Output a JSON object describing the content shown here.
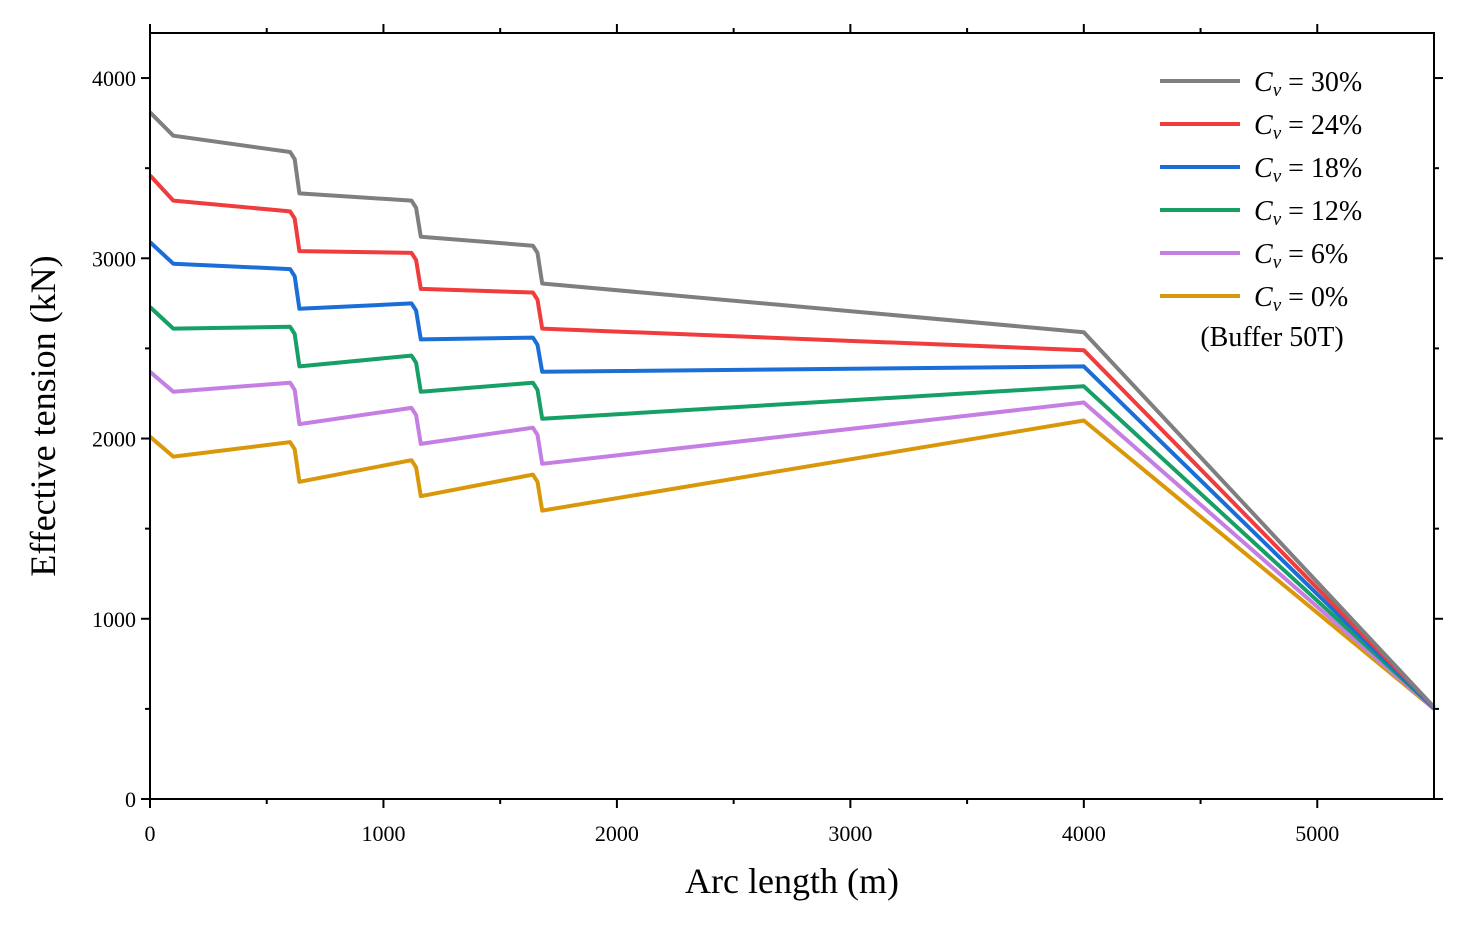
{
  "chart_data": {
    "type": "line",
    "title": "",
    "xlabel": "Arc length (m)",
    "ylabel": "Effective tension (kN)",
    "xlim": [
      0,
      5500
    ],
    "ylim": [
      0,
      4250
    ],
    "xticks": [
      0,
      1000,
      2000,
      3000,
      4000,
      5000
    ],
    "yticks": [
      0,
      1000,
      2000,
      3000,
      4000
    ],
    "x_minor_step": 500,
    "y_minor_step": 500,
    "grid": false,
    "legend_position": "top-right",
    "note": "(Buffer 50T)",
    "series": [
      {
        "name": "Cv = 30%",
        "label_var": "C",
        "label_sub": "v",
        "label_rest": " = 30%",
        "color": "#7f7f7f",
        "x": [
          0,
          100,
          600,
          620,
          640,
          1120,
          1140,
          1160,
          1640,
          1660,
          1680,
          4000,
          5500
        ],
        "y": [
          3810,
          3680,
          3590,
          3550,
          3360,
          3320,
          3280,
          3120,
          3070,
          3030,
          2860,
          2590,
          510
        ]
      },
      {
        "name": "Cv = 24%",
        "label_var": "C",
        "label_sub": "v",
        "label_rest": " = 24%",
        "color": "#f03c3c",
        "x": [
          0,
          100,
          600,
          620,
          640,
          1120,
          1140,
          1160,
          1640,
          1660,
          1680,
          4000,
          5500
        ],
        "y": [
          3460,
          3320,
          3260,
          3220,
          3040,
          3030,
          2990,
          2830,
          2810,
          2770,
          2610,
          2490,
          510
        ]
      },
      {
        "name": "Cv = 18%",
        "label_var": "C",
        "label_sub": "v",
        "label_rest": " = 18%",
        "color": "#1a6ed8",
        "x": [
          0,
          100,
          600,
          620,
          640,
          1120,
          1140,
          1160,
          1640,
          1660,
          1680,
          4000,
          5500
        ],
        "y": [
          3090,
          2970,
          2940,
          2900,
          2720,
          2750,
          2710,
          2550,
          2560,
          2520,
          2370,
          2400,
          505
        ]
      },
      {
        "name": "Cv = 12%",
        "label_var": "C",
        "label_sub": "v",
        "label_rest": " = 12%",
        "color": "#16a065",
        "x": [
          0,
          100,
          600,
          620,
          640,
          1120,
          1140,
          1160,
          1640,
          1660,
          1680,
          4000,
          5500
        ],
        "y": [
          2730,
          2610,
          2620,
          2580,
          2400,
          2460,
          2420,
          2260,
          2310,
          2270,
          2110,
          2290,
          505
        ]
      },
      {
        "name": "Cv = 6%",
        "label_var": "C",
        "label_sub": "v",
        "label_rest": " = 6%",
        "color": "#c57fe3",
        "x": [
          0,
          100,
          600,
          620,
          640,
          1120,
          1140,
          1160,
          1640,
          1660,
          1680,
          4000,
          5500
        ],
        "y": [
          2370,
          2260,
          2310,
          2270,
          2080,
          2170,
          2130,
          1970,
          2060,
          2020,
          1860,
          2200,
          500
        ]
      },
      {
        "name": "Cv = 0%",
        "label_var": "C",
        "label_sub": "v",
        "label_rest": " = 0%",
        "color": "#d9980a",
        "x": [
          0,
          100,
          600,
          620,
          640,
          1120,
          1140,
          1160,
          1640,
          1660,
          1680,
          4000,
          5500
        ],
        "y": [
          2010,
          1900,
          1980,
          1940,
          1760,
          1880,
          1840,
          1680,
          1800,
          1760,
          1600,
          2100,
          500
        ]
      }
    ]
  }
}
